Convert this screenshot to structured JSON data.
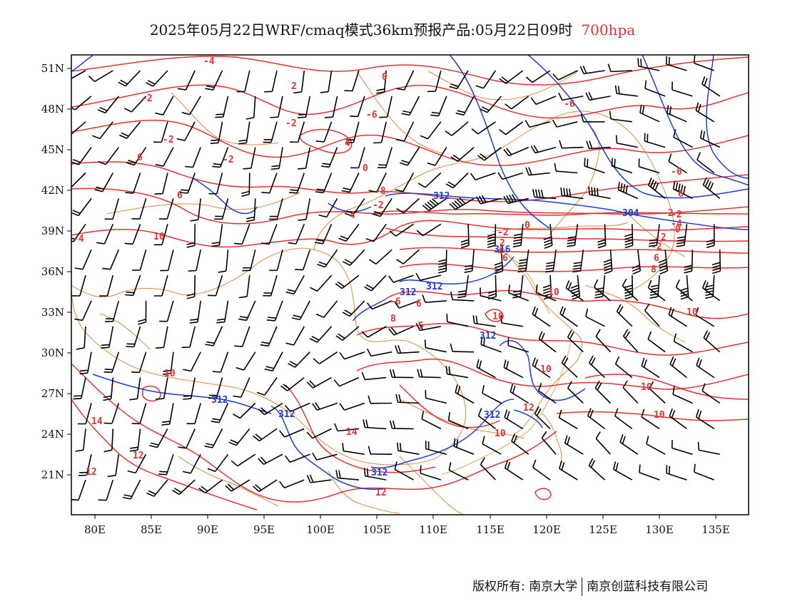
{
  "title": {
    "main": "2025年05月22日WRF/cmaq模式36km预报产品:05月22日09时",
    "level": "700hpa"
  },
  "colors": {
    "temperature": "#e03232",
    "height": "#1e3cd2",
    "wind": "#000000",
    "border": "#d98c3c"
  },
  "map": {
    "lon_range": [
      78,
      138
    ],
    "lat_range": [
      18,
      52
    ],
    "lon_ticks": [
      "80E",
      "85E",
      "90E",
      "95E",
      "100E",
      "105E",
      "110E",
      "115E",
      "120E",
      "125E",
      "130E",
      "135E"
    ],
    "lat_ticks": [
      "51N",
      "48N",
      "45N",
      "42N",
      "39N",
      "36N",
      "33N",
      "30N",
      "27N",
      "24N",
      "21N"
    ],
    "temp_labels": [
      "-4",
      "-2",
      "2",
      "0",
      "-2",
      "-6",
      "-6",
      "4",
      "-2",
      "-2",
      "0",
      "4",
      "-6",
      "6",
      "6",
      "-8",
      "-2",
      "-2",
      "-4",
      "-2",
      "6",
      "-4",
      "10",
      "-2",
      "2",
      "0",
      "-2",
      "-6",
      "4",
      "8",
      "6",
      "6",
      "-0",
      "-2",
      "8",
      "10",
      "10",
      "6",
      "5",
      "10",
      "10",
      "12",
      "10",
      "10",
      "10",
      "14",
      "10",
      "14",
      "12",
      "12",
      "12"
    ],
    "height_labels": [
      "312",
      "304",
      "316",
      "312",
      "312",
      "312",
      "312",
      "312",
      "312",
      "312"
    ]
  },
  "footer": {
    "copyright": "版权所有: 南京大学",
    "company": "南京创蓝科技有限公司"
  }
}
